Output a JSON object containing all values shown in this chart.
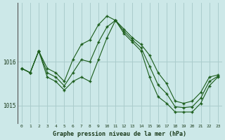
{
  "title": "Graphe pression niveau de la mer (hPa)",
  "background_color": "#cce8e8",
  "grid_color": "#aacccc",
  "line_color": "#1a5c1a",
  "x_values": [
    0,
    1,
    2,
    3,
    4,
    5,
    6,
    7,
    8,
    9,
    10,
    11,
    12,
    13,
    14,
    15,
    16,
    17,
    18,
    19,
    20,
    21,
    22,
    23
  ],
  "series1": [
    1015.85,
    1015.75,
    1016.25,
    1015.65,
    1015.55,
    1015.35,
    1015.55,
    1015.65,
    1015.55,
    1016.05,
    1016.55,
    1016.95,
    1016.65,
    1016.45,
    1016.25,
    1015.65,
    1015.2,
    1015.05,
    1014.85,
    1014.85,
    1014.85,
    1015.05,
    1015.45,
    1015.65
  ],
  "series2": [
    1015.85,
    1015.75,
    1016.25,
    1015.85,
    1015.75,
    1015.55,
    1016.05,
    1016.4,
    1016.5,
    1016.85,
    1017.05,
    1016.95,
    1016.75,
    1016.55,
    1016.4,
    1016.15,
    1015.75,
    1015.5,
    1015.1,
    1015.05,
    1015.1,
    1015.3,
    1015.65,
    1015.7
  ],
  "series3": [
    1015.85,
    1015.75,
    1016.25,
    1015.75,
    1015.65,
    1015.45,
    1015.75,
    1016.05,
    1016.0,
    1016.45,
    1016.8,
    1016.95,
    1016.7,
    1016.5,
    1016.32,
    1015.9,
    1015.47,
    1015.27,
    1014.97,
    1014.95,
    1014.97,
    1015.17,
    1015.55,
    1015.67
  ],
  "ylim_min": 1014.6,
  "ylim_max": 1017.35,
  "ytick_positions": [
    1015.0,
    1016.0
  ],
  "ytick_labels": [
    "1015",
    "1016"
  ],
  "figwidth": 3.2,
  "figheight": 2.0,
  "dpi": 100
}
